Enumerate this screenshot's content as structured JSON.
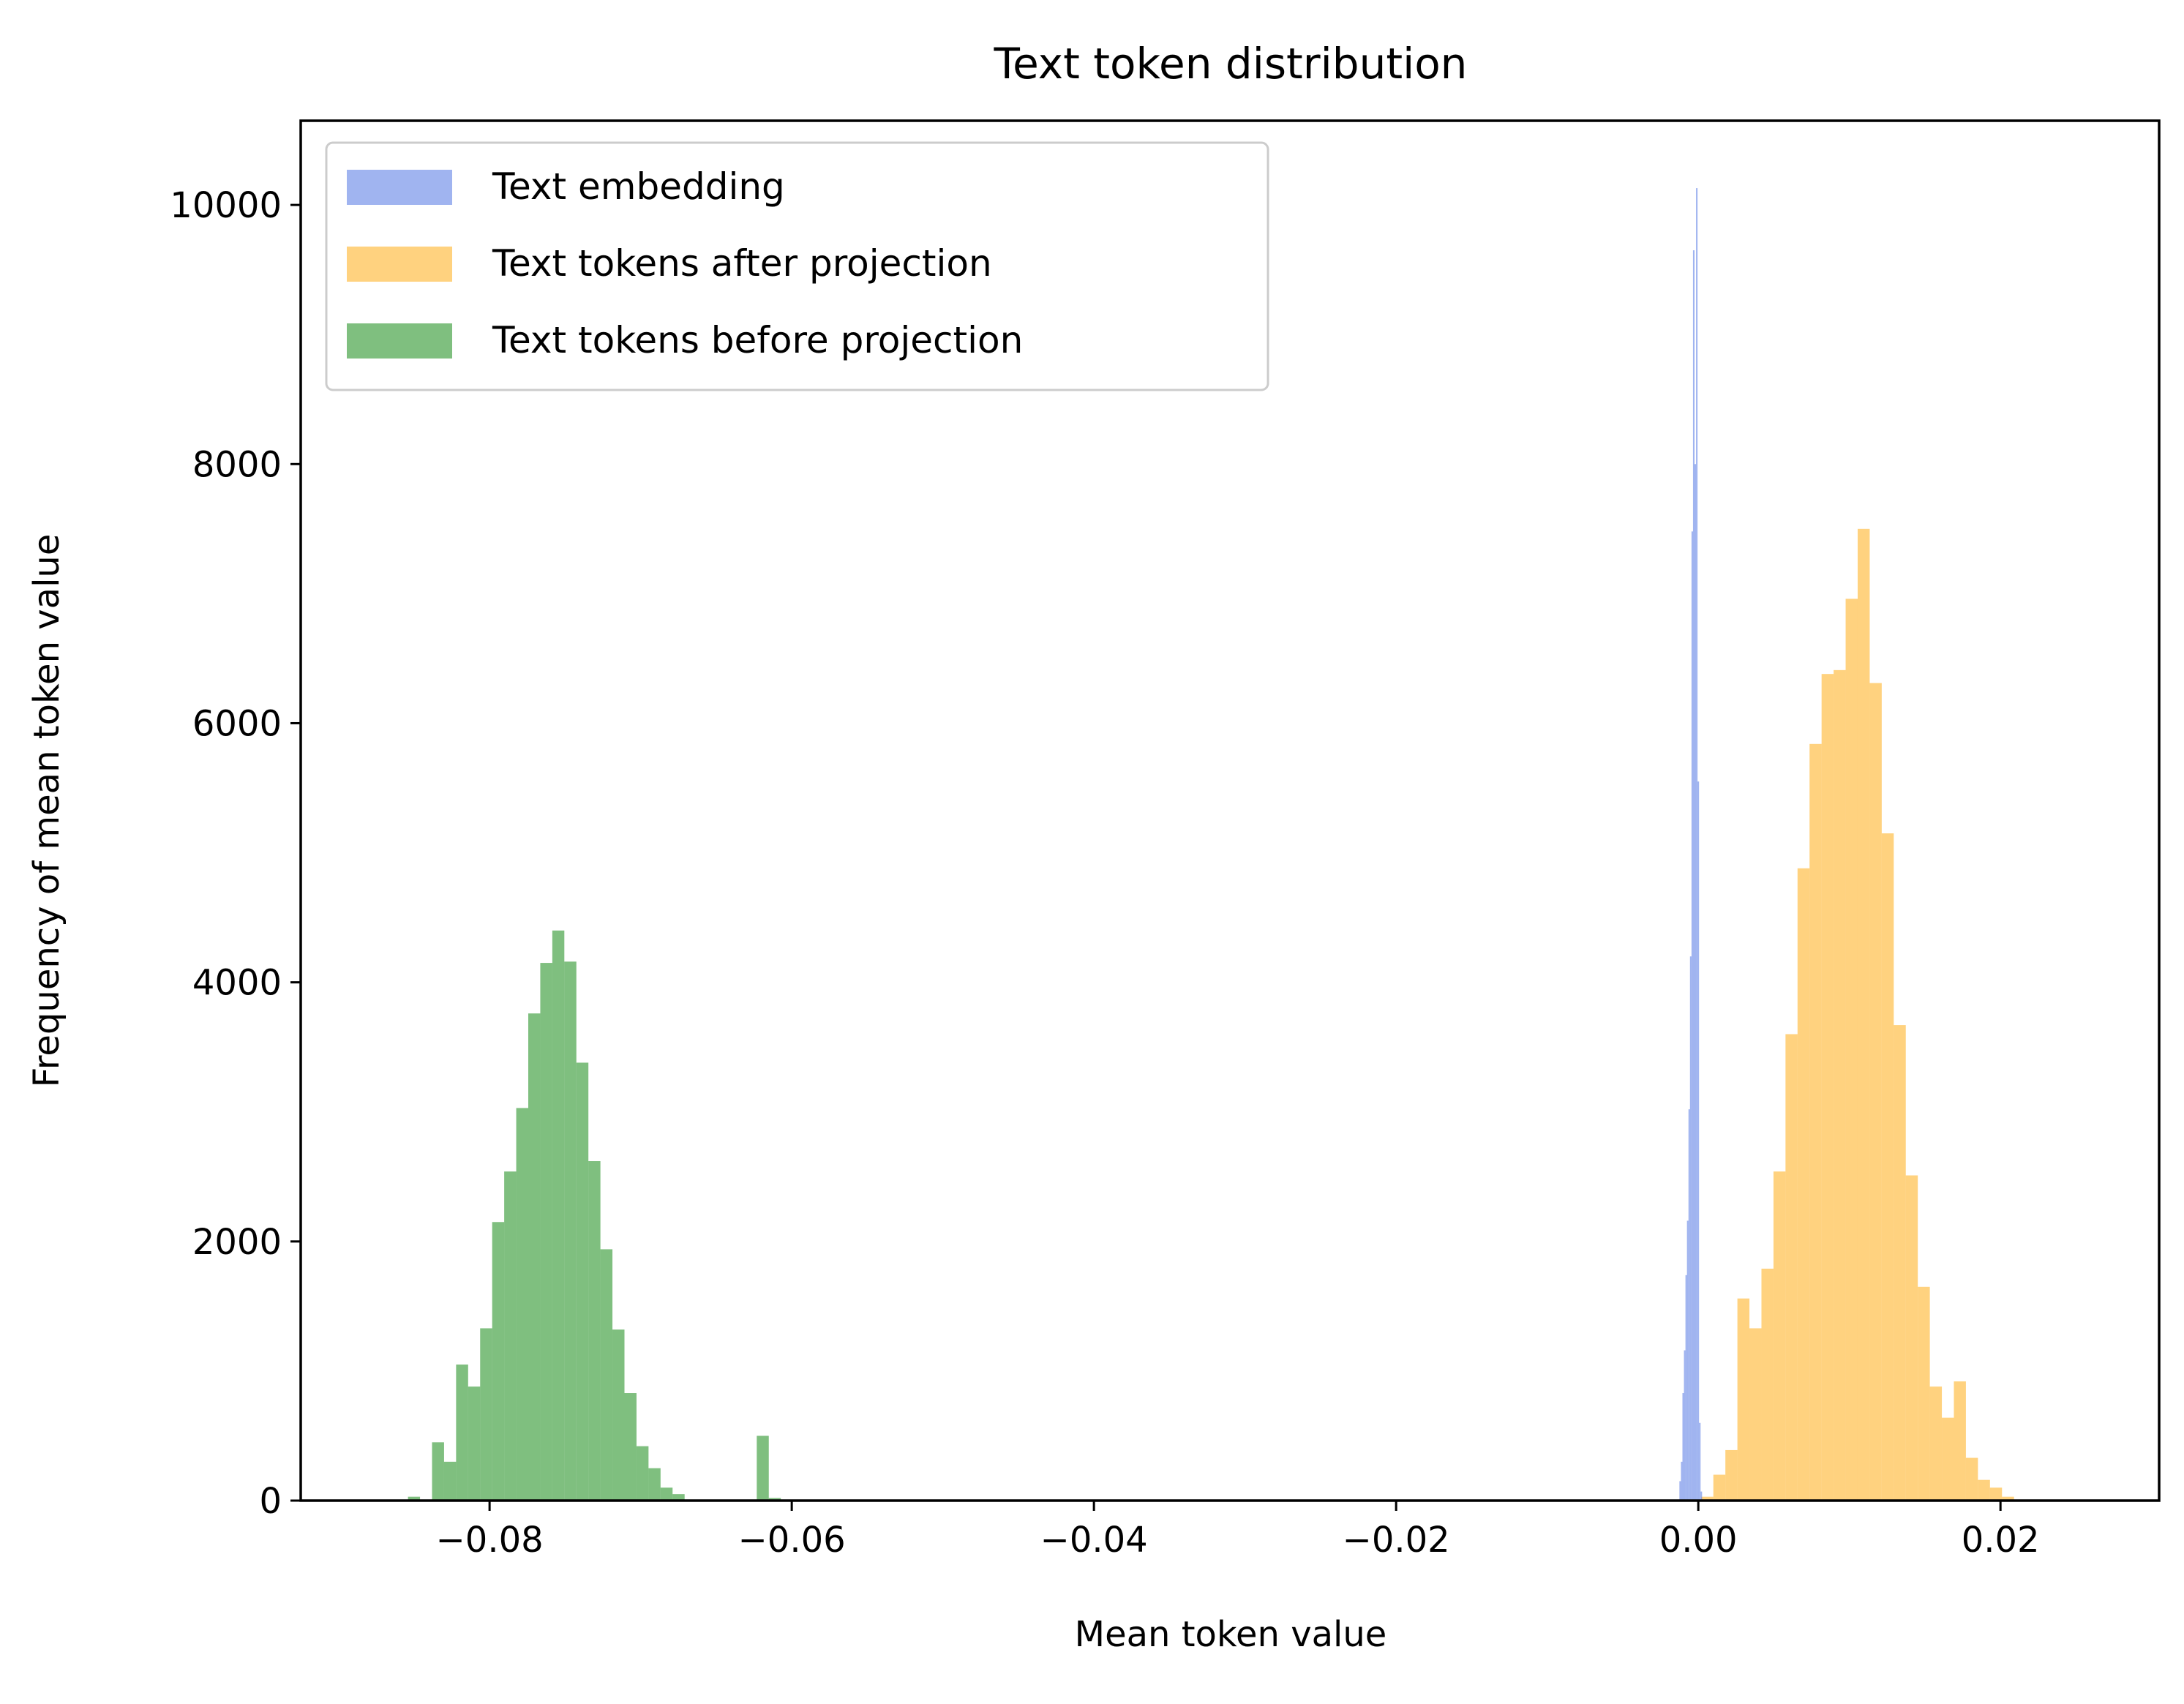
{
  "chart_data": {
    "type": "histogram",
    "title": "Text token distribution",
    "xlabel": "Mean token value",
    "ylabel": "Frequency of mean token value",
    "xlim": [
      -0.0925,
      0.0305
    ],
    "ylim": [
      0,
      10650
    ],
    "xticks": [
      {
        "value": -0.08,
        "label": "−0.08"
      },
      {
        "value": -0.06,
        "label": "−0.06"
      },
      {
        "value": -0.04,
        "label": "−0.04"
      },
      {
        "value": -0.02,
        "label": "−0.02"
      },
      {
        "value": 0.0,
        "label": "0.00"
      },
      {
        "value": 0.02,
        "label": "0.02"
      }
    ],
    "yticks": [
      {
        "value": 0,
        "label": "0"
      },
      {
        "value": 2000,
        "label": "2000"
      },
      {
        "value": 4000,
        "label": "4000"
      },
      {
        "value": 6000,
        "label": "6000"
      },
      {
        "value": 8000,
        "label": "8000"
      },
      {
        "value": 10000,
        "label": "10000"
      }
    ],
    "grid": false,
    "legend_position": "top-left",
    "series": [
      {
        "name": "Text tokens before projection",
        "color": "#008000",
        "opacity": 0.5,
        "bin_edges_start": -0.0854,
        "bin_width": 0.000796,
        "counts": [
          30,
          0,
          450,
          300,
          1050,
          880,
          1330,
          2150,
          2540,
          3030,
          3760,
          4150,
          4400,
          4160,
          3380,
          2620,
          1940,
          1320,
          830,
          420,
          250,
          100,
          50,
          0,
          0,
          0,
          0,
          0,
          0,
          500,
          20
        ]
      },
      {
        "name": "Text tokens after projection",
        "color": "#FFA500",
        "opacity": 0.5,
        "bin_edges_start": 0.0002,
        "bin_width": 0.000796,
        "counts": [
          30,
          200,
          390,
          1560,
          1330,
          1790,
          2540,
          3600,
          4880,
          5840,
          6380,
          6410,
          6960,
          7500,
          6310,
          5150,
          3670,
          2510,
          1650,
          880,
          640,
          920,
          330,
          160,
          100,
          30
        ]
      },
      {
        "name": "Text embedding",
        "color": "#4169E1",
        "opacity": 0.5,
        "bin_edges_start": -0.00125,
        "bin_width": 0.0001,
        "counts": [
          150,
          300,
          830,
          1160,
          1740,
          2160,
          3020,
          4200,
          7480,
          9650,
          8000,
          10130,
          5550,
          600,
          70
        ]
      }
    ]
  }
}
